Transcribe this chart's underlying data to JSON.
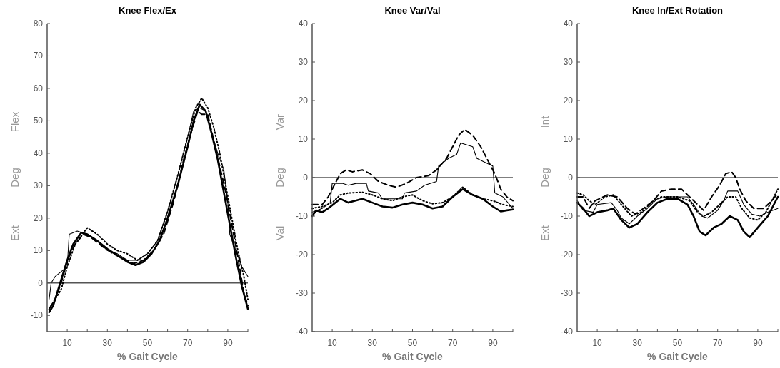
{
  "chart_data": [
    {
      "type": "line",
      "title": "Knee Flex/Ex",
      "xlabel": "% Gait Cycle",
      "ylabel": "Ext        Deg        Flex",
      "xlim": [
        0,
        100
      ],
      "xticks": [
        {
          "value": 10,
          "label": "10"
        },
        {
          "value": 20,
          "label": null
        },
        {
          "value": 30,
          "label": "30"
        },
        {
          "value": 40,
          "label": null
        },
        {
          "value": 50,
          "label": "50"
        },
        {
          "value": 60,
          "label": null
        },
        {
          "value": 70,
          "label": "70"
        },
        {
          "value": 80,
          "label": null
        },
        {
          "value": 90,
          "label": "90"
        },
        {
          "value": 100,
          "label": null
        }
      ],
      "ylim": [
        -15,
        80
      ],
      "yticks": [
        -10,
        0,
        10,
        20,
        30,
        40,
        50,
        60,
        70,
        80
      ],
      "grid": false,
      "ref_lines": [
        {
          "axis": "y",
          "value": 0,
          "color": "#555555"
        }
      ],
      "series": [
        {
          "color": "#000000",
          "line_style": "solid",
          "x": [
            1,
            2,
            4,
            6,
            8,
            10,
            11,
            15,
            20,
            25,
            30,
            35,
            40,
            45,
            50,
            55,
            60,
            65,
            70,
            73,
            76,
            79,
            82,
            85,
            88,
            90,
            91,
            94,
            97,
            100
          ],
          "values": [
            -5,
            0,
            2,
            3,
            4,
            5,
            15,
            16,
            15,
            13,
            10,
            9,
            7,
            7,
            9,
            13,
            22,
            33,
            45,
            53,
            54,
            53,
            46,
            40,
            35,
            25,
            15,
            10,
            5,
            2
          ]
        },
        {
          "color": "#000000",
          "line_style": "solid",
          "x": [
            1,
            3,
            5,
            7,
            10,
            13,
            17,
            20,
            25,
            30,
            35,
            40,
            44,
            48,
            52,
            56,
            60,
            65,
            70,
            73,
            76,
            79,
            82,
            85,
            88,
            91,
            94,
            97,
            100
          ],
          "values": [
            -9,
            -7,
            -3,
            1,
            7,
            12,
            15.5,
            15,
            13,
            10.5,
            8.5,
            6.5,
            5.5,
            6.5,
            9,
            13,
            20,
            30,
            42,
            50,
            55,
            53,
            46,
            38,
            28,
            18,
            8,
            -1,
            -8
          ]
        },
        {
          "color": "#000000",
          "line_style": "dashed",
          "x": [
            1,
            4,
            7,
            10,
            14,
            18,
            22,
            28,
            33,
            38,
            43,
            48,
            53,
            58,
            63,
            68,
            72,
            75,
            77,
            80,
            83,
            86,
            89,
            92,
            95,
            98,
            100
          ],
          "values": [
            -8,
            -5,
            0,
            7,
            12,
            15,
            14,
            11,
            9,
            7.5,
            6,
            7,
            10,
            15,
            25,
            38,
            47,
            53,
            52,
            52,
            44,
            36,
            28,
            18,
            8,
            -3,
            -7
          ]
        },
        {
          "color": "#000000",
          "line_style": "dotted",
          "x": [
            1,
            4,
            7,
            10,
            14,
            20,
            25,
            30,
            35,
            40,
            45,
            50,
            55,
            60,
            65,
            70,
            74,
            77,
            80,
            83,
            86,
            89,
            92,
            95,
            98,
            100
          ],
          "values": [
            -8,
            -5,
            -2,
            5,
            12,
            17,
            15,
            12,
            10,
            9,
            7,
            9,
            13,
            22,
            33,
            45,
            54,
            57,
            54,
            48,
            40,
            30,
            20,
            10,
            2,
            -5
          ]
        }
      ]
    },
    {
      "type": "line",
      "title": "Knee Var/Val",
      "xlabel": "% Gait Cycle",
      "ylabel": "Val        Deg        Var",
      "xlim": [
        0,
        100
      ],
      "xticks": [
        {
          "value": 10,
          "label": "10"
        },
        {
          "value": 20,
          "label": null
        },
        {
          "value": 30,
          "label": "30"
        },
        {
          "value": 40,
          "label": null
        },
        {
          "value": 50,
          "label": "50"
        },
        {
          "value": 60,
          "label": null
        },
        {
          "value": 70,
          "label": "70"
        },
        {
          "value": 80,
          "label": null
        },
        {
          "value": 90,
          "label": "90"
        },
        {
          "value": 100,
          "label": null
        }
      ],
      "ylim": [
        -40,
        40
      ],
      "yticks": [
        -40,
        -30,
        -20,
        -10,
        0,
        10,
        20,
        30,
        40
      ],
      "grid": false,
      "ref_lines": [
        {
          "axis": "y",
          "value": 0,
          "color": "#555555"
        }
      ],
      "series": [
        {
          "color": "#000000",
          "line_style": "solid",
          "x": [
            0,
            5,
            9,
            10,
            15,
            18,
            22,
            27,
            28,
            33,
            35,
            45,
            46,
            52,
            56,
            62,
            63,
            68,
            72,
            74,
            80,
            82,
            86,
            90,
            91,
            95,
            100
          ],
          "values": [
            -9,
            -8,
            -6.5,
            -1.5,
            -1.5,
            -2,
            -1.5,
            -1.5,
            -3.5,
            -4,
            -5.5,
            -5.5,
            -4,
            -3.5,
            -2,
            -1,
            3,
            5,
            6,
            9,
            8,
            5,
            4,
            3,
            -4,
            -5,
            -8
          ]
        },
        {
          "color": "#000000",
          "line_style": "solid",
          "x": [
            0,
            2,
            5,
            8,
            14,
            18,
            25,
            30,
            35,
            40,
            45,
            50,
            55,
            60,
            65,
            70,
            75,
            80,
            85,
            90,
            94,
            97,
            100
          ],
          "values": [
            -10,
            -8.5,
            -9,
            -8,
            -5.5,
            -6.5,
            -5.5,
            -6.5,
            -7.5,
            -7.8,
            -7,
            -6.5,
            -7,
            -8,
            -7.5,
            -5,
            -3,
            -4.5,
            -5.5,
            -7.5,
            -8.8,
            -8.5,
            -8.3
          ]
        },
        {
          "color": "#000000",
          "line_style": "dashed",
          "x": [
            0,
            5,
            8,
            11,
            14,
            17,
            20,
            25,
            29,
            33,
            38,
            42,
            47,
            52,
            58,
            62,
            67,
            70,
            73,
            76,
            80,
            84,
            88,
            91,
            94,
            97,
            100
          ],
          "values": [
            -7,
            -7,
            -5,
            -2,
            1,
            2,
            1.5,
            2,
            1,
            -1,
            -2,
            -2.5,
            -1.5,
            0,
            0.5,
            2,
            5,
            8,
            11,
            12.5,
            11,
            8,
            4,
            1,
            -3,
            -5,
            -6
          ]
        },
        {
          "color": "#000000",
          "line_style": "dotted",
          "x": [
            0,
            5,
            10,
            14,
            18,
            25,
            30,
            35,
            40,
            45,
            50,
            55,
            60,
            65,
            70,
            75,
            80,
            85,
            90,
            95,
            100
          ],
          "values": [
            -8,
            -7.5,
            -6.5,
            -4.5,
            -4,
            -3.8,
            -4.5,
            -5.5,
            -6,
            -5,
            -4.5,
            -6,
            -6.8,
            -6.5,
            -5,
            -2.5,
            -4.5,
            -5.5,
            -6,
            -7,
            -7.5
          ]
        }
      ]
    },
    {
      "type": "line",
      "title": "Knee In/Ext Rotation",
      "xlabel": "% Gait Cycle",
      "ylabel": "Ext        Deg        Int",
      "xlim": [
        0,
        100
      ],
      "xticks": [
        {
          "value": 10,
          "label": "10"
        },
        {
          "value": 20,
          "label": null
        },
        {
          "value": 30,
          "label": "30"
        },
        {
          "value": 40,
          "label": null
        },
        {
          "value": 50,
          "label": "50"
        },
        {
          "value": 60,
          "label": null
        },
        {
          "value": 70,
          "label": "70"
        },
        {
          "value": 80,
          "label": null
        },
        {
          "value": 90,
          "label": "90"
        },
        {
          "value": 100,
          "label": null
        }
      ],
      "ylim": [
        -40,
        40
      ],
      "yticks": [
        -40,
        -30,
        -20,
        -10,
        0,
        10,
        20,
        30,
        40
      ],
      "grid": false,
      "ref_lines": [
        {
          "axis": "y",
          "value": 0,
          "color": "#555555"
        }
      ],
      "series": [
        {
          "color": "#000000",
          "line_style": "solid",
          "x": [
            0,
            3,
            8,
            10,
            17,
            20,
            22,
            26,
            30,
            35,
            40,
            45,
            55,
            58,
            62,
            65,
            70,
            73,
            75,
            80,
            83,
            87,
            91,
            95,
            100
          ],
          "values": [
            -6,
            -8.5,
            -9,
            -7,
            -6.5,
            -8.5,
            -10.5,
            -12,
            -10,
            -8,
            -5.5,
            -5,
            -5,
            -7,
            -10,
            -10.5,
            -8.5,
            -6,
            -3.5,
            -3.5,
            -7,
            -9.5,
            -10,
            -9,
            -8
          ]
        },
        {
          "color": "#000000",
          "line_style": "solid",
          "x": [
            0,
            3,
            6,
            10,
            15,
            18,
            22,
            26,
            30,
            35,
            40,
            45,
            50,
            55,
            58,
            61,
            64,
            68,
            72,
            76,
            80,
            83,
            86,
            90,
            95,
            100
          ],
          "values": [
            -6.5,
            -8,
            -10,
            -9,
            -8.5,
            -8,
            -11,
            -13,
            -12,
            -9,
            -6.5,
            -5.5,
            -5.5,
            -7,
            -10,
            -14,
            -15,
            -13,
            -12,
            -10,
            -11,
            -14,
            -15.5,
            -13,
            -10,
            -5
          ]
        },
        {
          "color": "#000000",
          "line_style": "dashed",
          "x": [
            0,
            3,
            6,
            9,
            15,
            20,
            25,
            29,
            33,
            38,
            42,
            47,
            52,
            56,
            60,
            63,
            67,
            71,
            74,
            77,
            79,
            81,
            84,
            88,
            93,
            97,
            100
          ],
          "values": [
            -5,
            -5,
            -8,
            -6,
            -4.5,
            -5,
            -8,
            -9.5,
            -8,
            -6,
            -3.5,
            -3,
            -3,
            -5,
            -7,
            -8.5,
            -5,
            -2,
            1,
            1.5,
            0,
            -3,
            -6,
            -8,
            -8,
            -6,
            -4
          ]
        },
        {
          "color": "#000000",
          "line_style": "dotted",
          "x": [
            0,
            3,
            6,
            9,
            14,
            18,
            22,
            27,
            32,
            38,
            42,
            50,
            56,
            60,
            63,
            67,
            71,
            75,
            79,
            82,
            86,
            90,
            94,
            98,
            100
          ],
          "values": [
            -4,
            -4.5,
            -6,
            -7,
            -5,
            -4.5,
            -7,
            -10,
            -9,
            -6,
            -5,
            -5,
            -6,
            -9,
            -10,
            -9,
            -7,
            -5,
            -5,
            -8,
            -10.5,
            -11,
            -9,
            -5,
            -3
          ]
        }
      ]
    }
  ]
}
